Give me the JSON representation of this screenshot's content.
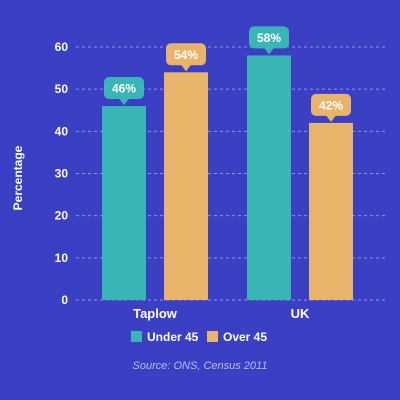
{
  "chart_data": {
    "type": "bar",
    "categories": [
      "Taplow",
      "UK"
    ],
    "series": [
      {
        "name": "Under 45",
        "values": [
          46,
          58
        ],
        "color": "#3ab5b6"
      },
      {
        "name": "Over 45",
        "values": [
          54,
          42
        ],
        "color": "#e8b46a"
      }
    ],
    "value_labels": [
      [
        "46%",
        "58%"
      ],
      [
        "54%",
        "42%"
      ]
    ],
    "ylabel": "Percentage",
    "ylim": [
      0,
      60
    ],
    "yticks": [
      0,
      10,
      20,
      30,
      40,
      50,
      60
    ],
    "grid": "horizontal dashed",
    "legend": "bottom"
  },
  "source": "Source: ONS, Census 2011",
  "colors": {
    "background": "#3b3fc4",
    "text": "#ffffff",
    "grid": "#8f93e6"
  }
}
